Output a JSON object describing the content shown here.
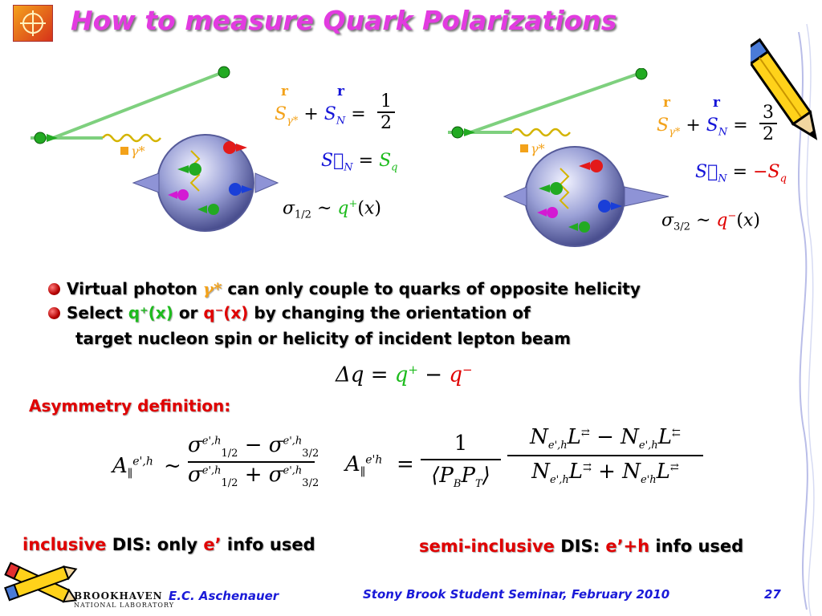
{
  "title": "How to measure Quark Polarizations",
  "left_panel": {
    "gamma_label": "γ*",
    "eq1_rhs_num": "1",
    "eq1_rhs_den": "2",
    "eq2_rhs": "S",
    "eq2_rhs_sub": "q",
    "sigma_sub": "1/2",
    "q_sup": "+",
    "r_orange": "r",
    "r_blue": "r"
  },
  "right_panel": {
    "gamma_label": "γ*",
    "eq1_rhs_num": "3",
    "eq1_rhs_den": "2",
    "eq2_rhs": "−S",
    "eq2_rhs_sub": "q",
    "sigma_sub": "3/2",
    "q_sup": "−",
    "r_orange": "r",
    "r_blue": "r"
  },
  "bullets": {
    "b1_pre": "Virtual photon",
    "b1_gamma": "γ*",
    "b1_post": "can only couple to quarks of opposite helicity",
    "b2_pre": "Select",
    "b2_qplus": "q⁺(x)",
    "b2_or": "or",
    "b2_qminus": "q⁻(x)",
    "b2_post": "by changing the orientation of",
    "b3": "target nucleon spin or helicity of incident lepton beam"
  },
  "delta_q": {
    "lhs": "Δq",
    "eq": "=",
    "qplus": "q",
    "plus": "+",
    "minus_op": "−",
    "qminus": "q",
    "minus": "−"
  },
  "asymmetry_label": "Asymmetry definition:",
  "captions": {
    "inclusive_red": "inclusive",
    "inclusive_rest_a": "DIS: only",
    "inclusive_e": "e’",
    "inclusive_rest_b": "info used",
    "semi_red": "semi-inclusive",
    "semi_rest_a": "DIS:",
    "semi_eh": "e’+h",
    "semi_rest_b": "info used"
  },
  "footer": {
    "logo_main": "BROOKHAVEN",
    "logo_sub": "NATIONAL LABORATORY",
    "author": "E.C. Aschenauer",
    "event": "Stony Brook Student Seminar, February 2010",
    "page": "27"
  },
  "colors": {
    "title": "#e23be0",
    "green": "#1dbb1d",
    "red": "#e00000",
    "orange": "#f3a21a",
    "blue": "#1414d8",
    "footer": "#1a1ad8"
  }
}
